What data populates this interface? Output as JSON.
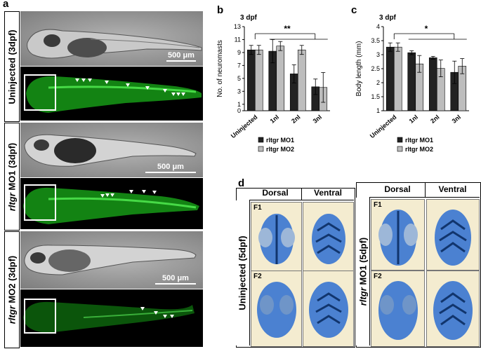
{
  "panel_a": {
    "label": "a",
    "rows": [
      {
        "label": "Uninjected (3dpf)",
        "scale": "500 μm"
      },
      {
        "label_italic": "rltgr",
        "label_rest": " MO1 (3dpf)",
        "scale": "500 μm"
      },
      {
        "label_italic": "rltgr",
        "label_rest": " MO2 (3dpf)",
        "scale": "500 μm"
      }
    ]
  },
  "panel_b": {
    "label": "b",
    "note": "3 dpf"
  },
  "panel_c": {
    "label": "c",
    "note": "3 dpf"
  },
  "panel_d": {
    "label": "d",
    "headers": {
      "dorsal": "Dorsal",
      "ventral": "Ventral"
    },
    "left_group": {
      "label": "Uninjected (5dpf)",
      "f1": "F1",
      "f2": "F2"
    },
    "right_group": {
      "label_italic": "rltgr",
      "label_rest": " MO1 (5dpf)",
      "f1": "F1",
      "f2": "F2"
    }
  },
  "colors": {
    "mo1": "#222222",
    "mo2": "#bdbdbd",
    "gfp": "#3ddc3d",
    "alcian": "#2d6ed1"
  },
  "chart_data": [
    {
      "type": "bar",
      "title": "",
      "annotation": "3 dpf",
      "ylabel": "No. of neuromasts",
      "xlabel": "",
      "ylim": [
        0,
        13
      ],
      "yticks": [
        0,
        1,
        3,
        5,
        7,
        9,
        11,
        13
      ],
      "categories": [
        "Uninjected",
        "1nl",
        "2nl",
        "3nl"
      ],
      "series": [
        {
          "name": "rltgr MO1",
          "values": [
            9.4,
            9.2,
            5.7,
            3.7
          ],
          "errors": [
            0.7,
            1.8,
            1.4,
            1.2
          ]
        },
        {
          "name": "rltgr MO2",
          "values": [
            9.4,
            10.0,
            9.4,
            3.6
          ],
          "errors": [
            0.7,
            0.7,
            0.7,
            2.3
          ]
        }
      ],
      "significance": "**",
      "legend": "bottom"
    },
    {
      "type": "bar",
      "title": "",
      "annotation": "3 dpf",
      "ylabel": "Body length (mm)",
      "xlabel": "",
      "ylim": [
        1,
        4
      ],
      "yticks": [
        1,
        1.5,
        2,
        2.5,
        3,
        3.5,
        4
      ],
      "categories": [
        "Uninjected",
        "1nl",
        "2nl",
        "3nl"
      ],
      "series": [
        {
          "name": "rltgr MO1",
          "values": [
            3.27,
            3.07,
            2.89,
            2.37
          ],
          "errors": [
            0.15,
            0.07,
            0.05,
            0.4
          ]
        },
        {
          "name": "rltgr MO2",
          "values": [
            3.27,
            2.67,
            2.51,
            2.59
          ],
          "errors": [
            0.15,
            0.3,
            0.3,
            0.27
          ]
        }
      ],
      "significance": "*",
      "legend": "bottom"
    }
  ]
}
